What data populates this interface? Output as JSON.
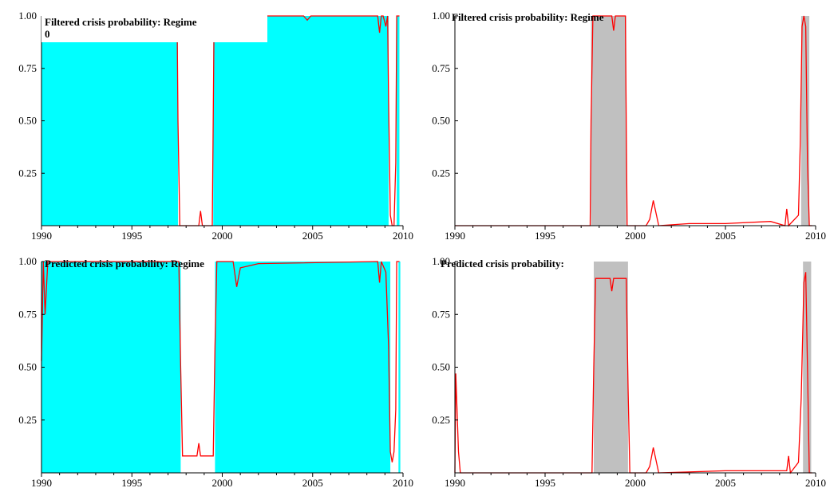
{
  "colors": {
    "regime0_shade": "#00ffff",
    "regime1_shade": "#c0c0c0",
    "probability_line": "#ff0000",
    "axis": "#000000"
  },
  "chart_data": [
    {
      "type": "area",
      "title": "Filtered crisis probability:  Regime 0",
      "ylim": [
        0,
        1
      ],
      "xlim": [
        1990,
        2010
      ],
      "yticks": [
        "0.25",
        "0.50",
        "0.75",
        "1.00"
      ],
      "xticks": [
        "1990",
        "1995",
        "2000",
        "2005",
        "2010"
      ],
      "shade_color": "#00ffff",
      "shaded_periods": [
        [
          1990.0,
          1997.55
        ],
        [
          1999.5,
          2009.2
        ],
        [
          2009.65,
          2009.8
        ]
      ],
      "series": [
        {
          "x": [
            1990.0,
            1997.5,
            1997.55,
            1997.65,
            1998.7,
            1998.8,
            1998.9,
            1999.45,
            1999.55,
            2004.5,
            2004.7,
            2004.9,
            2008.6,
            2008.7,
            2008.8,
            2008.9,
            2009.05,
            2009.15,
            2009.2,
            2009.3,
            2009.4,
            2009.5,
            2009.6,
            2009.65,
            2009.7,
            2009.8
          ],
          "values": [
            1.0,
            1.0,
            0.5,
            0.0,
            0.0,
            0.07,
            0.0,
            0.0,
            1.0,
            1.0,
            0.98,
            1.0,
            1.0,
            0.92,
            1.0,
            1.0,
            0.95,
            1.0,
            0.6,
            0.05,
            0.0,
            0.0,
            0.3,
            1.0,
            1.0,
            1.0
          ]
        }
      ]
    },
    {
      "type": "area",
      "title": "Filtered crisis probability:  Regime",
      "ylim": [
        0,
        1
      ],
      "xlim": [
        1990,
        2010
      ],
      "yticks": [
        "0.25",
        "0.50",
        "0.75",
        "1.00"
      ],
      "xticks": [
        "1990",
        "1995",
        "2000",
        "2005",
        "2010"
      ],
      "shade_color": "#c0c0c0",
      "shaded_periods": [
        [
          1997.55,
          1999.5
        ],
        [
          2009.2,
          2009.65
        ]
      ],
      "series": [
        {
          "x": [
            1990.0,
            1997.5,
            1997.55,
            1997.65,
            1998.7,
            1998.8,
            1998.9,
            1999.45,
            1999.55,
            2000.6,
            2000.8,
            2001.0,
            2001.3,
            2003.0,
            2005.0,
            2007.5,
            2008.3,
            2008.4,
            2008.5,
            2009.05,
            2009.15,
            2009.25,
            2009.35,
            2009.45,
            2009.55,
            2009.65,
            2009.8
          ],
          "values": [
            0.0,
            0.0,
            0.5,
            1.0,
            1.0,
            0.93,
            1.0,
            1.0,
            0.0,
            0.0,
            0.03,
            0.12,
            0.0,
            0.01,
            0.01,
            0.02,
            0.0,
            0.08,
            0.0,
            0.05,
            0.4,
            0.95,
            1.0,
            0.95,
            0.3,
            0.0,
            0.0
          ]
        }
      ]
    },
    {
      "type": "area",
      "title": "Predicted crisis probability:  Regime",
      "ylim": [
        0,
        1
      ],
      "xlim": [
        1990,
        2010
      ],
      "yticks": [
        "0.25",
        "0.50",
        "0.75",
        "1.00"
      ],
      "xticks": [
        "1990",
        "1995",
        "2000",
        "2005",
        "2010"
      ],
      "shade_color": "#00ffff",
      "shaded_periods": [
        [
          1990.0,
          1997.7
        ],
        [
          1999.6,
          2009.3
        ],
        [
          2009.75,
          2009.85
        ]
      ],
      "series": [
        {
          "x": [
            1990.0,
            1990.1,
            1990.2,
            1990.35,
            1997.6,
            1997.7,
            1997.8,
            1998.6,
            1998.7,
            1998.8,
            1999.5,
            1999.6,
            1999.7,
            2000.6,
            2000.8,
            2001.0,
            2002.0,
            2008.6,
            2008.7,
            2008.8,
            2009.05,
            2009.2,
            2009.3,
            2009.4,
            2009.5,
            2009.6,
            2009.65,
            2009.8
          ],
          "values": [
            0.53,
            1.0,
            0.75,
            1.0,
            1.0,
            0.5,
            0.08,
            0.08,
            0.14,
            0.08,
            0.08,
            0.6,
            1.0,
            1.0,
            0.88,
            0.97,
            0.99,
            1.0,
            0.9,
            1.0,
            0.95,
            0.6,
            0.1,
            0.05,
            0.1,
            0.3,
            1.0,
            1.0
          ]
        }
      ]
    },
    {
      "type": "area",
      "title": "Predicted crisis probability:",
      "ylim": [
        0,
        1
      ],
      "xlim": [
        1990,
        2010
      ],
      "yticks": [
        "0.25",
        "0.50",
        "0.75",
        "1.00"
      ],
      "xticks": [
        "1990",
        "1995",
        "2000",
        "2005",
        "2010"
      ],
      "shade_color": "#c0c0c0",
      "shaded_periods": [
        [
          1997.7,
          1999.6
        ],
        [
          2009.3,
          2009.75
        ]
      ],
      "series": [
        {
          "x": [
            1990.0,
            1990.05,
            1990.2,
            1990.3,
            1997.6,
            1997.7,
            1997.8,
            1998.6,
            1998.7,
            1998.8,
            1999.5,
            1999.6,
            1999.7,
            2000.6,
            2000.8,
            2001.0,
            2001.3,
            2005.0,
            2008.4,
            2008.5,
            2008.6,
            2009.05,
            2009.2,
            2009.35,
            2009.45,
            2009.55,
            2009.65,
            2009.8
          ],
          "values": [
            0.0,
            0.47,
            0.1,
            0.0,
            0.0,
            0.5,
            0.92,
            0.92,
            0.86,
            0.92,
            0.92,
            0.4,
            0.0,
            0.0,
            0.03,
            0.12,
            0.0,
            0.01,
            0.01,
            0.08,
            0.0,
            0.05,
            0.35,
            0.9,
            0.95,
            0.5,
            0.0,
            0.0
          ]
        }
      ]
    }
  ]
}
